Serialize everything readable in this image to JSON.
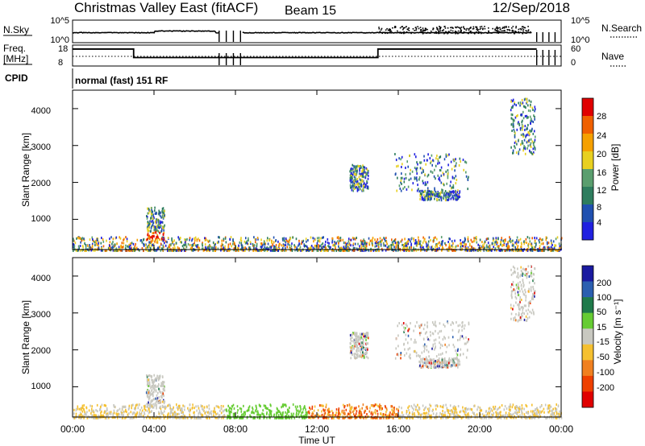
{
  "header": {
    "station": "Christmas Valley East (fitACF)",
    "beam": "Beam 15",
    "date": "12/Sep/2018"
  },
  "sky_panel": {
    "left_label": "N.Sky",
    "right_label": "N.Search",
    "left_ticks": [
      "10^5",
      "10^0"
    ],
    "right_ticks": [
      "10^5",
      "10^0"
    ]
  },
  "freq_panel": {
    "left_label_1": "Freq.",
    "left_label_2": "[MHz]",
    "right_label": "Nave",
    "left_ticks": [
      "18",
      "8"
    ],
    "right_ticks": [
      "60",
      "0"
    ]
  },
  "cpid": {
    "label": "CPID",
    "program": "normal (fast) 151 RF"
  },
  "xaxis": {
    "label": "Time UT",
    "ticks": [
      "00:00",
      "04:00",
      "08:00",
      "12:00",
      "16:00",
      "20:00",
      "00:00"
    ]
  },
  "power_panel": {
    "ylabel": "Slant Range [km]",
    "yticks": [
      "1000",
      "2000",
      "3000",
      "4000"
    ],
    "colorbar_label": "Power [dB]",
    "colorbar_ticks": [
      "4",
      "8",
      "12",
      "16",
      "20",
      "24",
      "28"
    ]
  },
  "velocity_panel": {
    "ylabel": "Slant Range [km]",
    "yticks": [
      "1000",
      "2000",
      "3000",
      "4000"
    ],
    "colorbar_label": "Velocity [m s⁻¹]",
    "colorbar_ticks": [
      "200",
      "100",
      "50",
      "15",
      "-15",
      "-50",
      "-100",
      "-200"
    ]
  },
  "chart_data": {
    "type": "heatmap",
    "x_range_hours": [
      0,
      24
    ],
    "y_range_km": [
      180,
      4500
    ],
    "power_colors": [
      "#2020e0",
      "#2050b0",
      "#2e7d5e",
      "#5a9e6e",
      "#e8d020",
      "#f5a000",
      "#f06000",
      "#e00000"
    ],
    "velocity_colors": [
      "#1a1aa0",
      "#2b5fb0",
      "#1f7a4a",
      "#66cc33",
      "#c8c8c0",
      "#f5c030",
      "#f08020",
      "#ee4000",
      "#e00000"
    ],
    "echo_regions": [
      {
        "t0": 0.0,
        "t1": 24.0,
        "r0": 180,
        "r1": 550,
        "kind": "ground"
      },
      {
        "t0": 3.6,
        "t1": 4.5,
        "r0": 450,
        "r1": 1350,
        "kind": "feature"
      },
      {
        "t0": 13.6,
        "t1": 14.5,
        "r0": 1800,
        "r1": 2500,
        "kind": "feature"
      },
      {
        "t0": 15.8,
        "t1": 19.5,
        "r0": 1800,
        "r1": 2800,
        "kind": "feature"
      },
      {
        "t0": 17.0,
        "t1": 19.0,
        "r0": 1550,
        "r1": 1800,
        "kind": "feature"
      },
      {
        "t0": 21.5,
        "t1": 22.7,
        "r0": 2800,
        "r1": 4300,
        "kind": "feature"
      }
    ]
  }
}
